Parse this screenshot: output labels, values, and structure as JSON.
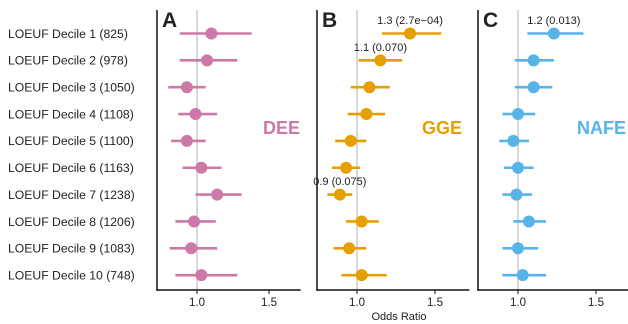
{
  "figure": {
    "x_axis_title": "Odds Ratio",
    "rows": [
      "LOEUF Decile 1 (825)",
      "LOEUF Decile 2 (978)",
      "LOEUF Decile 3 (1050)",
      "LOEUF Decile 4 (1108)",
      "LOEUF Decile 5 (1100)",
      "LOEUF Decile 6 (1163)",
      "LOEUF Decile 7 (1238)",
      "LOEUF Decile 8 (1206)",
      "LOEUF Decile 9 (1083)",
      "LOEUF Decile 10 (748)"
    ]
  },
  "chart_data": [
    {
      "type": "scatter",
      "panel": "A",
      "group_label": "DEE",
      "color": "#cc79a7",
      "xlim": [
        0.77,
        1.72
      ],
      "xticks": [
        1.0,
        1.5
      ],
      "xtick_labels": [
        "1.0",
        "1.5"
      ],
      "reference_line": 1.0,
      "points": [
        {
          "or": 1.1,
          "lo": 0.88,
          "hi": 1.38
        },
        {
          "or": 1.07,
          "lo": 0.88,
          "hi": 1.28
        },
        {
          "or": 0.93,
          "lo": 0.8,
          "hi": 1.06
        },
        {
          "or": 0.99,
          "lo": 0.87,
          "hi": 1.14
        },
        {
          "or": 0.93,
          "lo": 0.82,
          "hi": 1.06
        },
        {
          "or": 1.03,
          "lo": 0.9,
          "hi": 1.17
        },
        {
          "or": 1.14,
          "lo": 0.99,
          "hi": 1.31
        },
        {
          "or": 0.98,
          "lo": 0.85,
          "hi": 1.13
        },
        {
          "or": 0.96,
          "lo": 0.81,
          "hi": 1.14
        },
        {
          "or": 1.03,
          "lo": 0.85,
          "hi": 1.28
        }
      ],
      "annotations": []
    },
    {
      "type": "scatter",
      "panel": "B",
      "group_label": "GGE",
      "color": "#e69f00",
      "xlim": [
        0.77,
        1.72
      ],
      "xticks": [
        1.0,
        1.5
      ],
      "xtick_labels": [
        "1.0",
        "1.5"
      ],
      "reference_line": 1.0,
      "points": [
        {
          "or": 1.34,
          "lo": 1.16,
          "hi": 1.54
        },
        {
          "or": 1.15,
          "lo": 1.01,
          "hi": 1.29
        },
        {
          "or": 1.08,
          "lo": 0.96,
          "hi": 1.21
        },
        {
          "or": 1.06,
          "lo": 0.94,
          "hi": 1.18
        },
        {
          "or": 0.96,
          "lo": 0.86,
          "hi": 1.06
        },
        {
          "or": 0.93,
          "lo": 0.84,
          "hi": 1.02
        },
        {
          "or": 0.89,
          "lo": 0.81,
          "hi": 0.97
        },
        {
          "or": 1.03,
          "lo": 0.93,
          "hi": 1.14
        },
        {
          "or": 0.95,
          "lo": 0.85,
          "hi": 1.06
        },
        {
          "or": 1.03,
          "lo": 0.9,
          "hi": 1.19
        }
      ],
      "annotations": [
        {
          "row": 0,
          "text": "1.3 (2.7e−04)"
        },
        {
          "row": 1,
          "text": "1.1 (0.070)"
        },
        {
          "row": 6,
          "text": "0.9 (0.075)"
        }
      ]
    },
    {
      "type": "scatter",
      "panel": "C",
      "group_label": "NAFE",
      "color": "#56b4e9",
      "xlim": [
        0.77,
        1.72
      ],
      "xticks": [
        1.0,
        1.5
      ],
      "xtick_labels": [
        "1.0",
        "1.5"
      ],
      "reference_line": 1.0,
      "points": [
        {
          "or": 1.23,
          "lo": 1.06,
          "hi": 1.42
        },
        {
          "or": 1.1,
          "lo": 0.98,
          "hi": 1.23
        },
        {
          "or": 1.1,
          "lo": 0.98,
          "hi": 1.22
        },
        {
          "or": 1.0,
          "lo": 0.9,
          "hi": 1.11
        },
        {
          "or": 0.97,
          "lo": 0.88,
          "hi": 1.07
        },
        {
          "or": 1.0,
          "lo": 0.91,
          "hi": 1.1
        },
        {
          "or": 0.99,
          "lo": 0.9,
          "hi": 1.09
        },
        {
          "or": 1.07,
          "lo": 0.97,
          "hi": 1.18
        },
        {
          "or": 1.0,
          "lo": 0.9,
          "hi": 1.13
        },
        {
          "or": 1.03,
          "lo": 0.9,
          "hi": 1.18
        }
      ],
      "annotations": [
        {
          "row": 0,
          "text": "1.2 (0.013)"
        }
      ]
    }
  ]
}
